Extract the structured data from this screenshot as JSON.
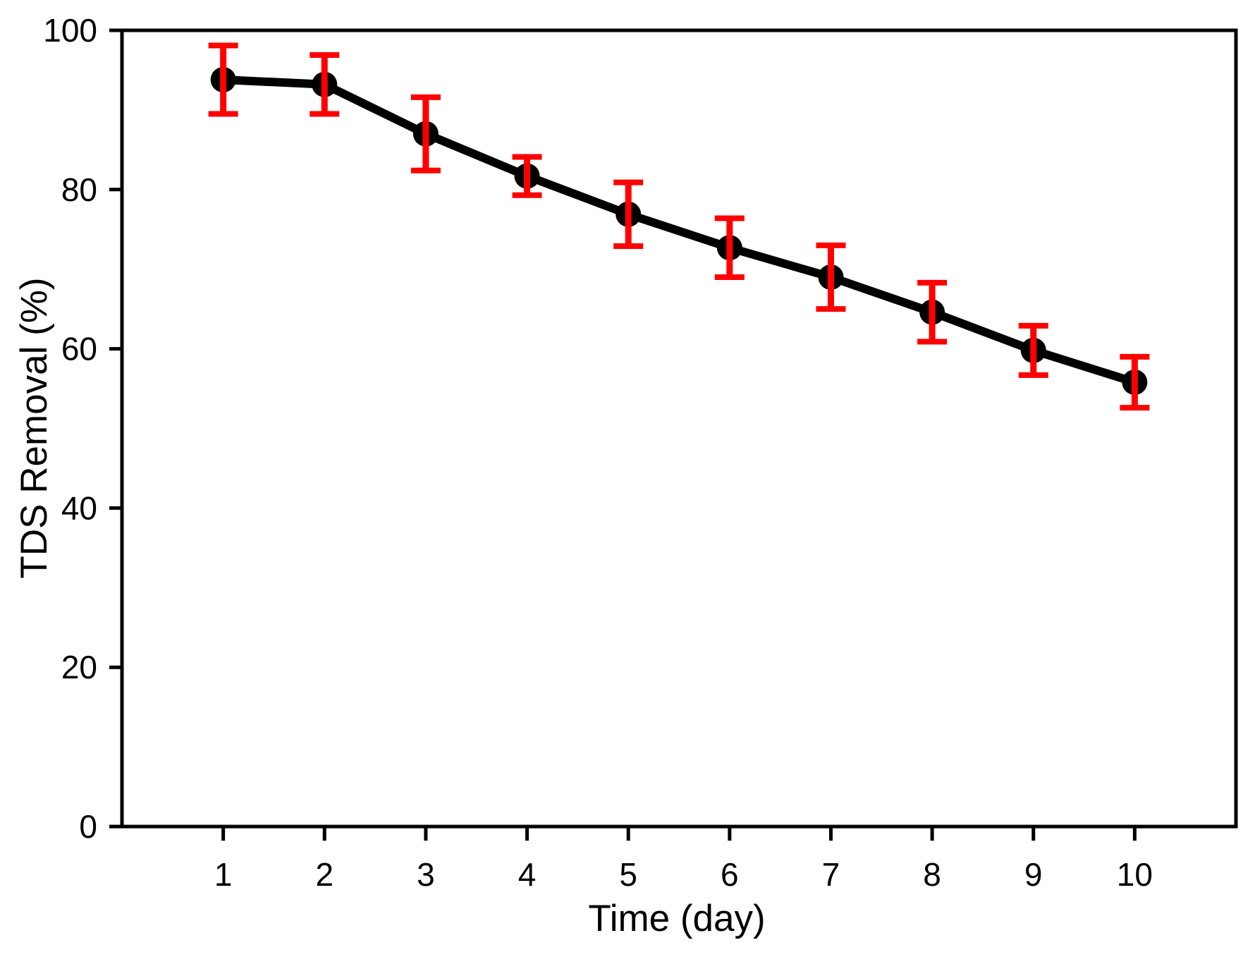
{
  "figure": {
    "background_color": "#ffffff",
    "frame_color": "#000000",
    "tick_label_color": "#000000"
  },
  "chart_data": {
    "type": "line",
    "title": "",
    "xlabel": "Time (day)",
    "ylabel": "TDS Removal (%)",
    "xlim": [
      0,
      11
    ],
    "ylim": [
      0,
      100
    ],
    "x_ticks": [
      1,
      2,
      3,
      4,
      5,
      6,
      7,
      8,
      9,
      10
    ],
    "y_ticks": [
      0,
      20,
      40,
      60,
      80,
      100
    ],
    "grid": false,
    "legend": false,
    "frame": "full-box",
    "series": [
      {
        "name": "TDS Removal",
        "marker": "circle",
        "line_color": "#000000",
        "marker_color": "#000000",
        "error_bar_color": "#ff0000",
        "x": [
          1,
          2,
          3,
          4,
          5,
          6,
          7,
          8,
          9,
          10
        ],
        "y": [
          93.8,
          93.2,
          87.0,
          81.7,
          76.9,
          72.7,
          69.0,
          64.6,
          59.8,
          55.8
        ],
        "y_err": [
          4.3,
          3.7,
          4.6,
          2.4,
          4.0,
          3.7,
          4.0,
          3.7,
          3.1,
          3.2
        ]
      }
    ]
  }
}
